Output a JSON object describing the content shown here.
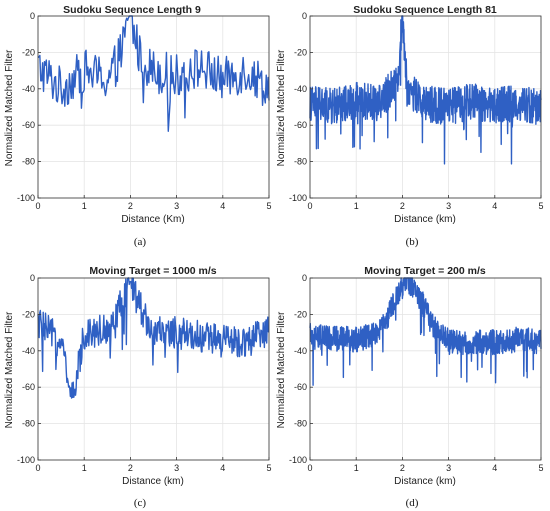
{
  "chart_data": [
    {
      "panel_label": "(a)",
      "type": "line",
      "title": "Sudoku Sequence Length 9",
      "xlabel": "Distance (Km)",
      "ylabel": "Normalized Matched Filter",
      "xlim": [
        0,
        5
      ],
      "ylim": [
        -100,
        0
      ],
      "xticks": [
        "0",
        "1",
        "2",
        "3",
        "4",
        "5"
      ],
      "yticks": [
        "0",
        "-20",
        "-40",
        "-60",
        "-80",
        "-100"
      ],
      "grid": true,
      "color": "#2f60c4",
      "series": [
        {
          "peak_x": 2.0,
          "peak_y": 0,
          "noise_mean": -32,
          "noise_spread": 12,
          "samples": 250,
          "description_points": {
            "x": [
              0,
              0.5,
              1.0,
              1.5,
              1.8,
              2.0,
              2.2,
              2.5,
              3.0,
              3.5,
              4.0,
              4.5,
              5.0
            ],
            "y": [
              -28,
              -40,
              -30,
              -35,
              -20,
              0,
              -22,
              -30,
              -33,
              -28,
              -35,
              -30,
              -40
            ]
          }
        }
      ]
    },
    {
      "panel_label": "(b)",
      "type": "line",
      "title": "Sudoku Sequence Length 81",
      "xlabel": "Distance (km)",
      "ylabel": "Normalized Matched Filter",
      "xlim": [
        0,
        5
      ],
      "ylim": [
        -100,
        0
      ],
      "xticks": [
        "0",
        "1",
        "2",
        "3",
        "4",
        "5"
      ],
      "yticks": [
        "0",
        "-20",
        "-40",
        "-60",
        "-80",
        "-100"
      ],
      "grid": true,
      "color": "#2f60c4",
      "series": [
        {
          "peak_x": 2.0,
          "peak_y": 0,
          "noise_mean": -48,
          "noise_spread": 10,
          "samples": 900,
          "description_points": {
            "x": [
              0,
              0.5,
              1.0,
              1.5,
              1.9,
              2.0,
              2.1,
              2.5,
              3.0,
              3.5,
              4.0,
              4.5,
              5.0
            ],
            "y": [
              -48,
              -50,
              -46,
              -48,
              -35,
              0,
              -40,
              -48,
              -50,
              -47,
              -49,
              -48,
              -50
            ]
          }
        }
      ]
    },
    {
      "panel_label": "(c)",
      "type": "line",
      "title": "Moving Target = 1000 m/s",
      "xlabel": "Distance (km)",
      "ylabel": "Normalized Matched Filter",
      "xlim": [
        0,
        5
      ],
      "ylim": [
        -100,
        0
      ],
      "xticks": [
        "0",
        "1",
        "2",
        "3",
        "4",
        "5"
      ],
      "yticks": [
        "0",
        "-20",
        "-40",
        "-60",
        "-80",
        "-100"
      ],
      "grid": true,
      "color": "#2f60c4",
      "series": [
        {
          "peak_x": 2.0,
          "peak_y": -2,
          "noise_mean": -30,
          "noise_spread": 9,
          "samples": 400,
          "description_points": {
            "x": [
              0,
              0.5,
              0.75,
              1.0,
              1.5,
              1.8,
              2.0,
              2.2,
              2.5,
              3.0,
              3.5,
              4.0,
              4.5,
              5.0
            ],
            "y": [
              -25,
              -35,
              -68,
              -30,
              -28,
              -15,
              -2,
              -15,
              -30,
              -30,
              -32,
              -35,
              -35,
              -30
            ]
          }
        }
      ]
    },
    {
      "panel_label": "(d)",
      "type": "line",
      "title": "Moving Target = 200 m/s",
      "xlabel": "Distance (km)",
      "ylabel": "Normalized Matched Filter",
      "xlim": [
        0,
        5
      ],
      "ylim": [
        -100,
        0
      ],
      "xticks": [
        "0",
        "1",
        "2",
        "3",
        "4",
        "5"
      ],
      "yticks": [
        "0",
        "-20",
        "-40",
        "-60",
        "-80",
        "-100"
      ],
      "grid": true,
      "color": "#2f60c4",
      "series": [
        {
          "peak_x": 2.1,
          "peak_y": 0,
          "noise_mean": -33,
          "noise_spread": 7,
          "samples": 900,
          "description_points": {
            "x": [
              0,
              0.5,
              1.0,
              1.5,
              1.8,
              2.1,
              2.4,
              2.7,
              3.0,
              3.5,
              4.0,
              4.5,
              5.0
            ],
            "y": [
              -32,
              -33,
              -34,
              -30,
              -15,
              0,
              -12,
              -28,
              -35,
              -36,
              -35,
              -34,
              -35
            ]
          }
        }
      ]
    }
  ]
}
